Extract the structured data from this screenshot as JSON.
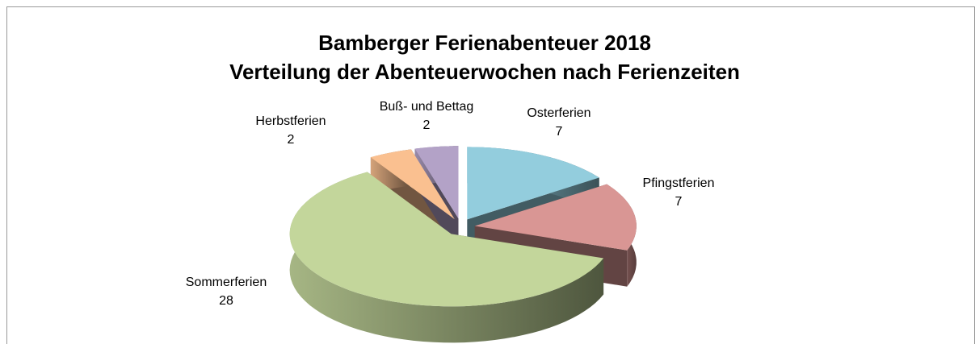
{
  "chart_data": {
    "type": "pie3d",
    "title": [
      "Bamberger Ferienabenteuer 2018",
      "Verteilung der Abenteuerwochen nach Ferienzeiten"
    ],
    "categories": [
      "Osterferien",
      "Pfingstferien",
      "Sommerferien",
      "Herbstferien",
      "Buß- und Bettag"
    ],
    "values": [
      7,
      7,
      28,
      2,
      2
    ],
    "colors": [
      "#93cddd",
      "#d99694",
      "#c3d69b",
      "#fac090",
      "#b3a2c7"
    ]
  }
}
